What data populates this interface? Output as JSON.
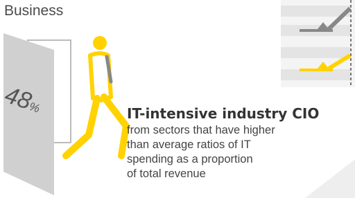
{
  "label": "Business",
  "stat": {
    "number": "48",
    "unit": "%"
  },
  "heading": "IT-intensive industry CIO",
  "description": [
    "from sectors that have higher",
    "than average ratios of IT",
    "spending as a proportion",
    "of total revenue"
  ]
}
